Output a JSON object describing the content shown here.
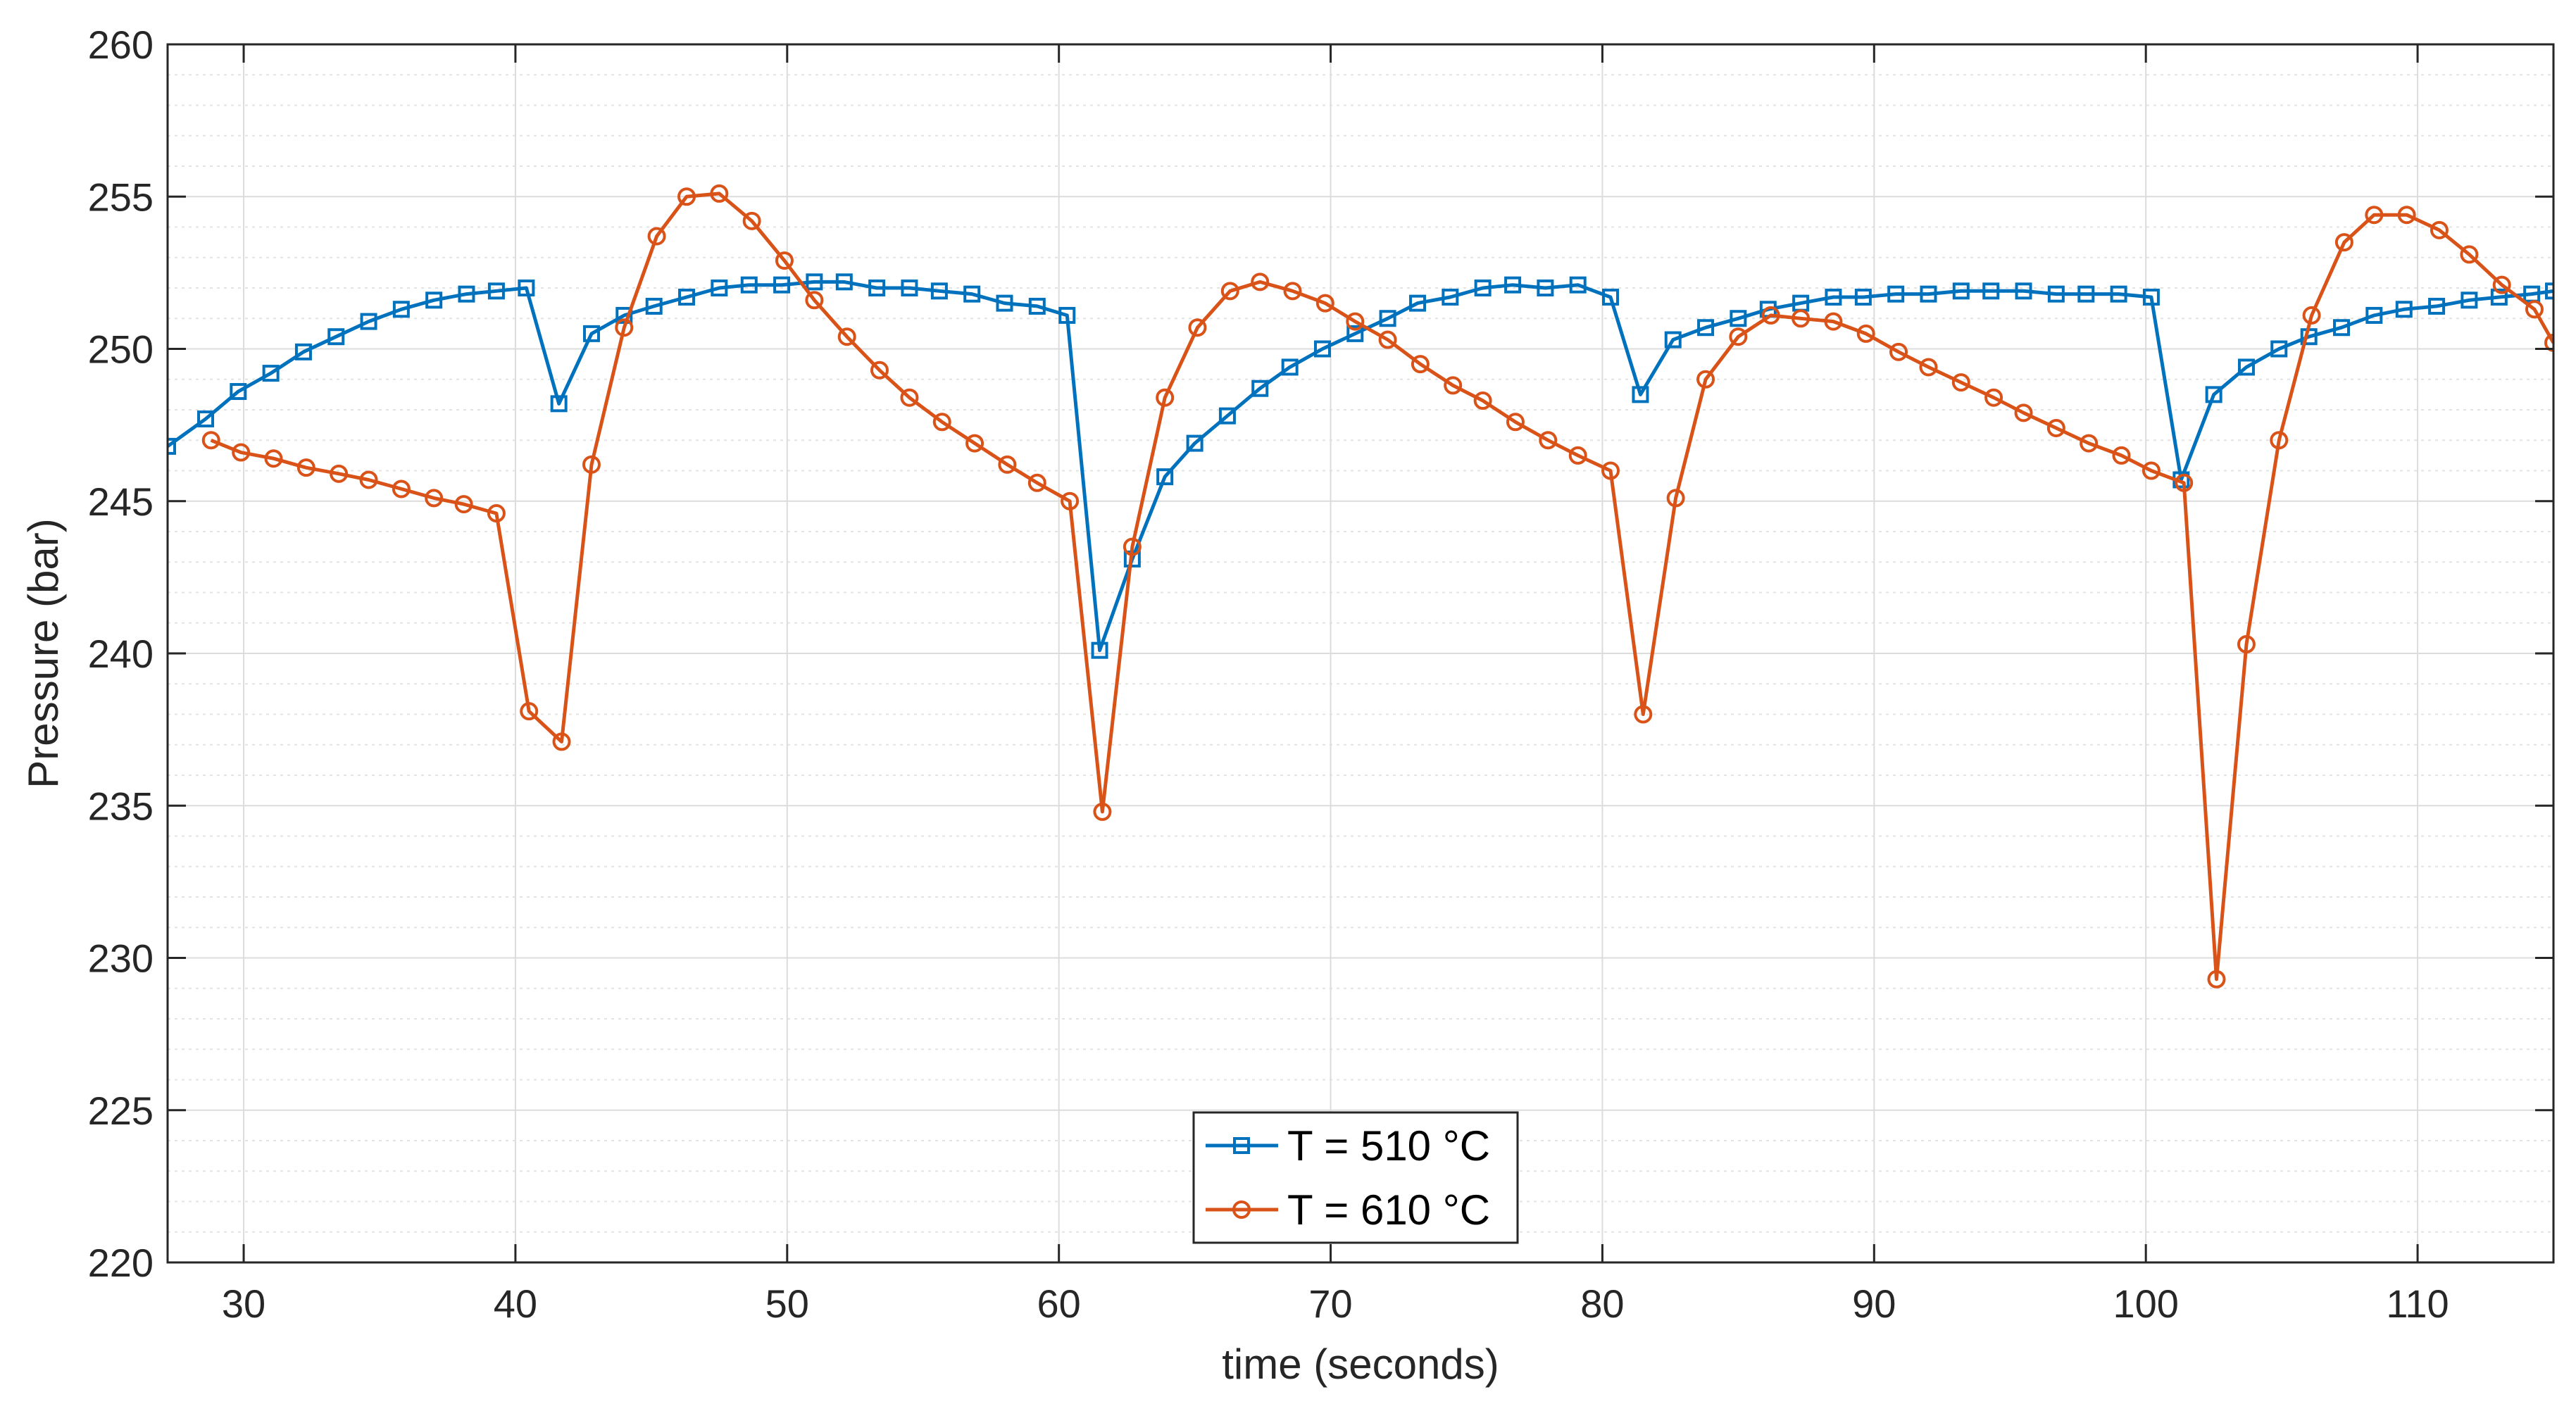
{
  "chart_data": {
    "type": "line",
    "title": "",
    "xlabel": "time (seconds)",
    "ylabel": "Pressure (bar)",
    "xlim": [
      27.2,
      115
    ],
    "ylim": [
      220,
      260
    ],
    "x_ticks": [
      30,
      40,
      50,
      60,
      70,
      80,
      90,
      100,
      110
    ],
    "y_ticks": [
      220,
      225,
      230,
      235,
      240,
      245,
      250,
      255,
      260
    ],
    "x_tick_labels": [
      "30",
      "40",
      "50",
      "60",
      "70",
      "80",
      "90",
      "100",
      "110"
    ],
    "y_tick_labels": [
      "220",
      "225",
      "230",
      "235",
      "240",
      "245",
      "250",
      "255",
      "260"
    ],
    "grid": true,
    "minor_grid": true,
    "legend_position": "bottom-center",
    "series": [
      {
        "name": "T = 510 °C",
        "color": "#0072BD",
        "marker": "square",
        "x": [
          27.2,
          28.6,
          29.8,
          31.0,
          32.2,
          33.4,
          34.6,
          35.8,
          37.0,
          38.2,
          39.3,
          40.4,
          41.6,
          42.8,
          44.0,
          45.1,
          46.3,
          47.5,
          48.6,
          49.8,
          51.0,
          52.1,
          53.3,
          54.5,
          55.6,
          56.8,
          58.0,
          59.2,
          60.3,
          61.5,
          62.7,
          63.9,
          65.0,
          66.2,
          67.4,
          68.5,
          69.7,
          70.9,
          72.1,
          73.2,
          74.4,
          75.6,
          76.7,
          77.9,
          79.1,
          80.3,
          81.4,
          82.6,
          83.8,
          85.0,
          86.1,
          87.3,
          88.5,
          89.6,
          90.8,
          92.0,
          93.2,
          94.3,
          95.5,
          96.7,
          97.8,
          99.0,
          100.2,
          101.3,
          102.5,
          103.7,
          104.9,
          106.0,
          107.2,
          108.4,
          109.5,
          110.7,
          111.9,
          113.0,
          114.2,
          115.0
        ],
        "y": [
          246.8,
          247.7,
          248.6,
          249.2,
          249.9,
          250.4,
          250.9,
          251.3,
          251.6,
          251.8,
          251.9,
          252.0,
          248.2,
          250.5,
          251.1,
          251.4,
          251.7,
          252.0,
          252.1,
          252.1,
          252.2,
          252.2,
          252.0,
          252.0,
          251.9,
          251.8,
          251.5,
          251.4,
          251.1,
          240.1,
          243.1,
          245.8,
          246.9,
          247.8,
          248.7,
          249.4,
          250.0,
          250.5,
          251.0,
          251.5,
          251.7,
          252.0,
          252.1,
          252.0,
          252.1,
          251.7,
          248.5,
          250.3,
          250.7,
          251.0,
          251.3,
          251.5,
          251.7,
          251.7,
          251.8,
          251.8,
          251.9,
          251.9,
          251.9,
          251.8,
          251.8,
          251.8,
          251.7,
          245.7,
          248.5,
          249.4,
          250.0,
          250.4,
          250.7,
          251.1,
          251.3,
          251.4,
          251.6,
          251.7,
          251.8,
          251.9
        ]
      },
      {
        "name": "T = 610 °C",
        "color": "#D95319",
        "marker": "circle",
        "x": [
          28.8,
          29.9,
          31.1,
          32.3,
          33.5,
          34.6,
          35.8,
          37.0,
          38.1,
          39.3,
          40.5,
          41.7,
          42.8,
          44.0,
          45.2,
          46.3,
          47.5,
          48.7,
          49.9,
          51.0,
          52.2,
          53.4,
          54.5,
          55.7,
          56.9,
          58.1,
          59.2,
          60.4,
          61.6,
          62.7,
          63.9,
          65.1,
          66.3,
          67.4,
          68.6,
          69.8,
          70.9,
          72.1,
          73.3,
          74.5,
          75.6,
          76.8,
          78.0,
          79.1,
          80.3,
          81.5,
          82.7,
          83.8,
          85.0,
          86.2,
          87.3,
          88.5,
          89.7,
          90.9,
          92.0,
          93.2,
          94.4,
          95.5,
          96.7,
          97.9,
          99.1,
          100.2,
          101.4,
          102.6,
          103.7,
          104.9,
          106.1,
          107.3,
          108.4,
          109.6,
          110.8,
          111.9,
          113.1,
          114.3,
          115.0
        ],
        "y": [
          247.0,
          246.6,
          246.4,
          246.1,
          245.9,
          245.7,
          245.4,
          245.1,
          244.9,
          244.6,
          238.1,
          237.1,
          246.2,
          250.7,
          253.7,
          255.0,
          255.1,
          254.2,
          252.9,
          251.6,
          250.4,
          249.3,
          248.4,
          247.6,
          246.9,
          246.2,
          245.6,
          245.0,
          234.8,
          243.5,
          248.4,
          250.7,
          251.9,
          252.2,
          251.9,
          251.5,
          250.9,
          250.3,
          249.5,
          248.8,
          248.3,
          247.6,
          247.0,
          246.5,
          246.0,
          238.0,
          245.1,
          249.0,
          250.4,
          251.1,
          251.0,
          250.9,
          250.5,
          249.9,
          249.4,
          248.9,
          248.4,
          247.9,
          247.4,
          246.9,
          246.5,
          246.0,
          245.6,
          229.3,
          240.3,
          247.0,
          251.1,
          253.5,
          254.4,
          254.4,
          253.9,
          253.1,
          252.1,
          251.3,
          250.2
        ]
      }
    ]
  }
}
